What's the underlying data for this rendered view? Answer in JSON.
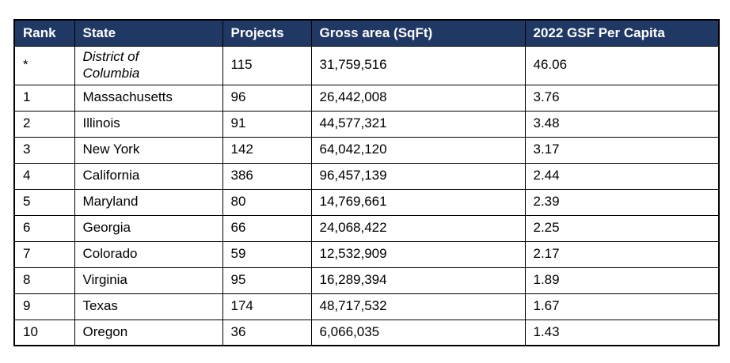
{
  "table": {
    "columns": [
      {
        "key": "rank",
        "label": "Rank"
      },
      {
        "key": "state",
        "label": "State"
      },
      {
        "key": "projects",
        "label": "Projects"
      },
      {
        "key": "gross_area",
        "label": "Gross area (SqFt)"
      },
      {
        "key": "per_capita",
        "label": "2022 GSF Per Capita"
      }
    ],
    "rows": [
      {
        "rank": "*",
        "state": "District of Columbia",
        "projects": "115",
        "gross_area": "31,759,516",
        "per_capita": "46.06"
      },
      {
        "rank": "1",
        "state": "Massachusetts",
        "projects": "96",
        "gross_area": "26,442,008",
        "per_capita": "3.76"
      },
      {
        "rank": "2",
        "state": "Illinois",
        "projects": "91",
        "gross_area": "44,577,321",
        "per_capita": "3.48"
      },
      {
        "rank": "3",
        "state": "New York",
        "projects": "142",
        "gross_area": "64,042,120",
        "per_capita": "3.17"
      },
      {
        "rank": "4",
        "state": "California",
        "projects": "386",
        "gross_area": "96,457,139",
        "per_capita": "2.44"
      },
      {
        "rank": "5",
        "state": "Maryland",
        "projects": "80",
        "gross_area": "14,769,661",
        "per_capita": "2.39"
      },
      {
        "rank": "6",
        "state": "Georgia",
        "projects": "66",
        "gross_area": "24,068,422",
        "per_capita": "2.25"
      },
      {
        "rank": "7",
        "state": "Colorado",
        "projects": "59",
        "gross_area": "12,532,909",
        "per_capita": "2.17"
      },
      {
        "rank": "8",
        "state": "Virginia",
        "projects": "95",
        "gross_area": "16,289,394",
        "per_capita": "1.89"
      },
      {
        "rank": "9",
        "state": "Texas",
        "projects": "174",
        "gross_area": "48,717,532",
        "per_capita": "1.67"
      },
      {
        "rank": "10",
        "state": "Oregon",
        "projects": "36",
        "gross_area": "6,066,035",
        "per_capita": "1.43"
      }
    ],
    "colors": {
      "header_background": "#203864",
      "header_text": "#FFFFFF",
      "border": "#000000",
      "body_text": "#000000"
    }
  }
}
